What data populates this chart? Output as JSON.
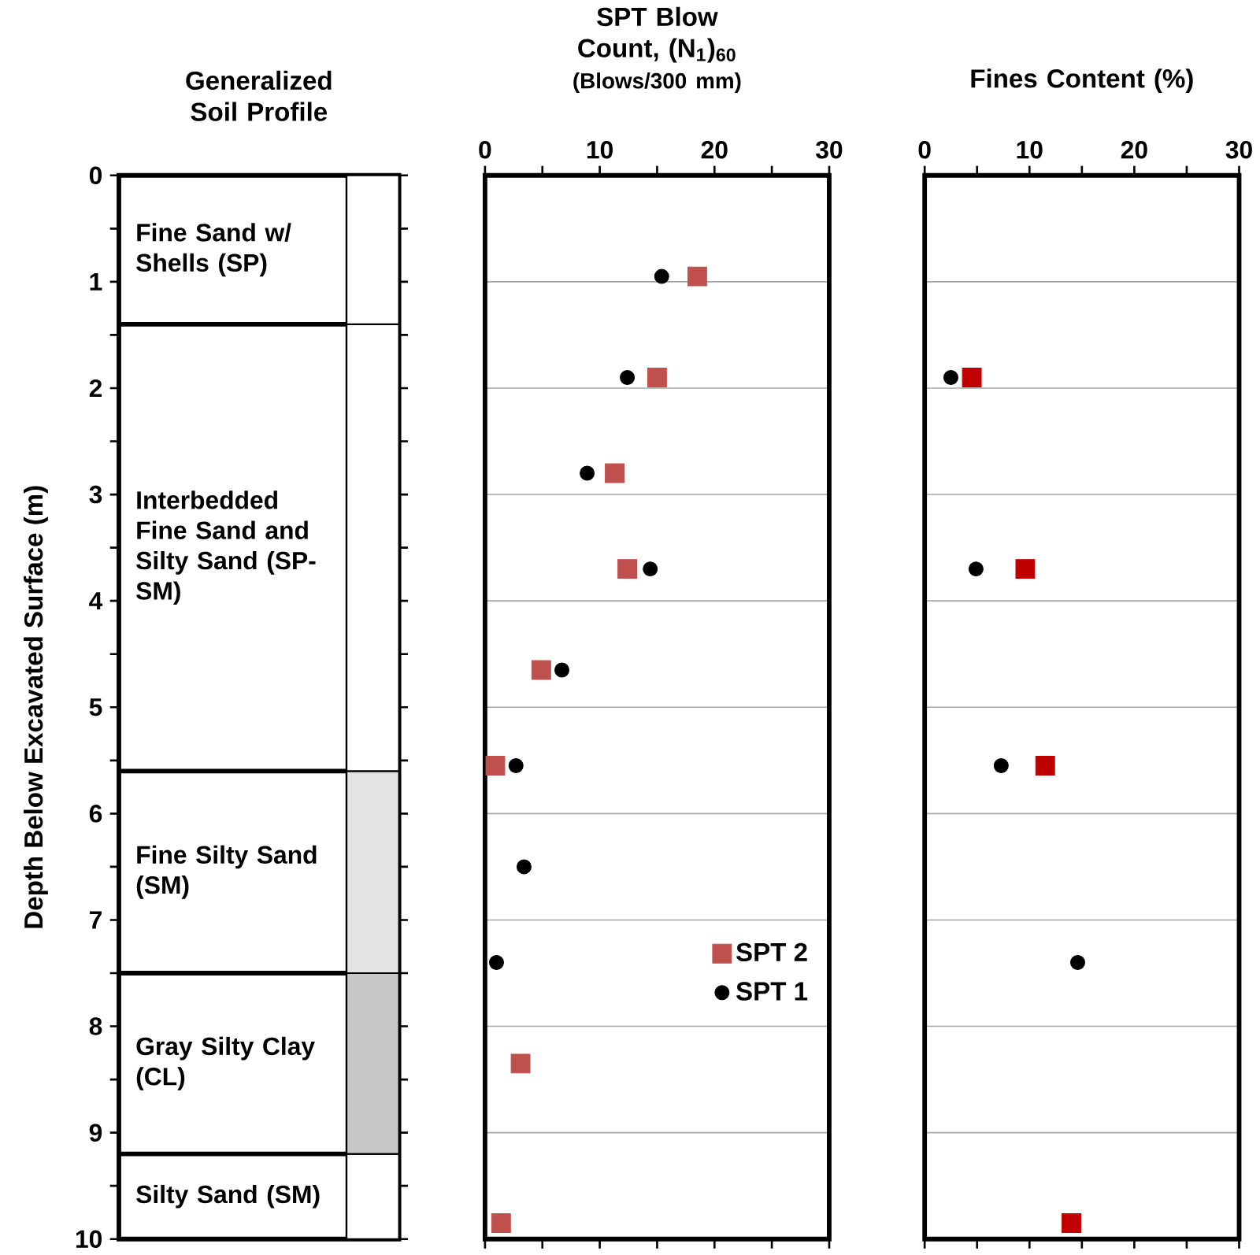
{
  "chart_data": [
    {
      "type": "bar",
      "stacked": true,
      "title": "Generalized Soil Profile",
      "ylabel": "Depth Below Excavated Surface (m)",
      "categories": [
        null
      ],
      "ylim": [
        10,
        0
      ],
      "yticks": [
        0,
        {
          "value": 0.5,
          "label": null
        },
        1,
        {
          "value": 1.5,
          "label": null
        },
        2,
        {
          "value": 2.5,
          "label": null
        },
        3,
        {
          "value": 3.5,
          "label": null
        },
        4,
        {
          "value": 4.5,
          "label": null
        },
        5,
        {
          "value": 5.5,
          "label": null
        },
        6,
        {
          "value": 6.5,
          "label": null
        },
        7,
        {
          "value": 7.5,
          "label": null
        },
        8,
        {
          "value": 8.5,
          "label": null
        },
        9,
        {
          "value": 9.5,
          "label": null
        },
        10
      ],
      "tick_labels": "y",
      "series": [
        {
          "name": "Fine Sand w/ Shells (SP)",
          "color": "#ffffff",
          "values": [
            1.4
          ]
        },
        {
          "name": "Interbedded Fine Sand and Silty Sand (SP-SM)",
          "color": "#ffffff",
          "values": [
            4.2
          ]
        },
        {
          "name": "Fine Silty Sand (SM)",
          "color": "#e4e4e4",
          "values": [
            1.9
          ]
        },
        {
          "name": "Gray Silty Clay (CL)",
          "color": "#c8c8c8",
          "values": [
            1.7
          ]
        },
        {
          "name": "Silty Sand (SM)",
          "color": "#ffffff",
          "values": [
            0.8
          ]
        }
      ]
    },
    {
      "type": "scatter",
      "title": "SPT Blow Count, (N$_{1}$)$_{60}$",
      "subtitle": "(Blows/300 mm)",
      "xlim": [
        0,
        30
      ],
      "xticks": [
        0,
        {
          "value": 5,
          "label": null
        },
        10,
        {
          "value": 15,
          "label": null
        },
        20,
        {
          "value": 25,
          "label": null
        },
        30
      ],
      "ylim": [
        10,
        0
      ],
      "yticks": [
        0,
        1,
        2,
        3,
        4,
        5,
        6,
        7,
        8,
        9,
        10
      ],
      "tick_labels": "x",
      "grid": "y",
      "legend": "right",
      "series": [
        {
          "name": "SPT 2",
          "color": "#c0504d",
          "marker": "square",
          "x": [
            18.5,
            15.0,
            11.3,
            12.4,
            4.9,
            0.9,
            3.1,
            1.4
          ],
          "values": [
            0.95,
            1.9,
            2.8,
            3.7,
            4.65,
            5.55,
            8.35,
            9.85
          ]
        },
        {
          "name": "SPT 1",
          "color": "#000000",
          "marker": "circle",
          "x": [
            15.4,
            12.4,
            8.9,
            14.4,
            6.7,
            2.7,
            3.4,
            1.0
          ],
          "values": [
            0.95,
            1.9,
            2.8,
            3.7,
            4.65,
            5.55,
            6.5,
            7.4
          ]
        }
      ]
    },
    {
      "type": "scatter",
      "title": "Fines Content (%)",
      "xlim": [
        0,
        30
      ],
      "xticks": [
        0,
        {
          "value": 5,
          "label": null
        },
        10,
        {
          "value": 15,
          "label": null
        },
        20,
        {
          "value": 25,
          "label": null
        },
        30
      ],
      "ylim": [
        10,
        0
      ],
      "yticks": [
        0,
        1,
        2,
        3,
        4,
        5,
        6,
        7,
        8,
        9,
        10
      ],
      "tick_labels": "x",
      "grid": "y",
      "series": [
        {
          "color": "#c00000",
          "marker": "square",
          "x": [
            4.5,
            9.6,
            11.5,
            14.0
          ],
          "values": [
            1.9,
            3.7,
            5.55,
            9.85
          ]
        },
        {
          "color": "#000000",
          "marker": "circle",
          "x": [
            2.5,
            4.9,
            7.3,
            14.6
          ],
          "values": [
            1.9,
            3.7,
            5.55,
            7.4
          ]
        }
      ]
    }
  ]
}
